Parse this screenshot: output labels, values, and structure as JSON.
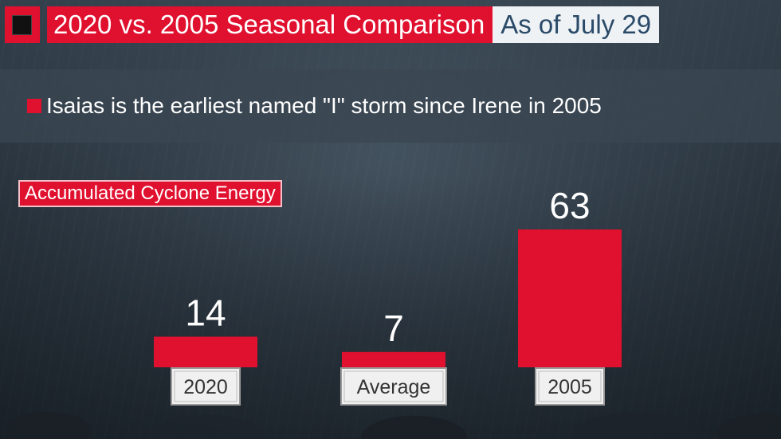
{
  "header": {
    "title": "2020 vs. 2005 Seasonal Comparison",
    "date": "As of July 29"
  },
  "bullet": "Isaias is the earliest named \"I\" storm since Irene in 2005",
  "metric_label": "Accumulated Cyclone Energy",
  "colors": {
    "accent": "#e0102f",
    "date_text": "#2a4a68",
    "label_box": "#f0f0f0"
  },
  "chart_data": {
    "type": "bar",
    "title": "Accumulated Cyclone Energy",
    "categories": [
      "2020",
      "Average",
      "2005"
    ],
    "values": [
      14,
      7,
      63
    ],
    "data_labels": [
      "14",
      "7",
      "63"
    ],
    "ylim": [
      0,
      63
    ],
    "grid": false,
    "legend": "none"
  }
}
